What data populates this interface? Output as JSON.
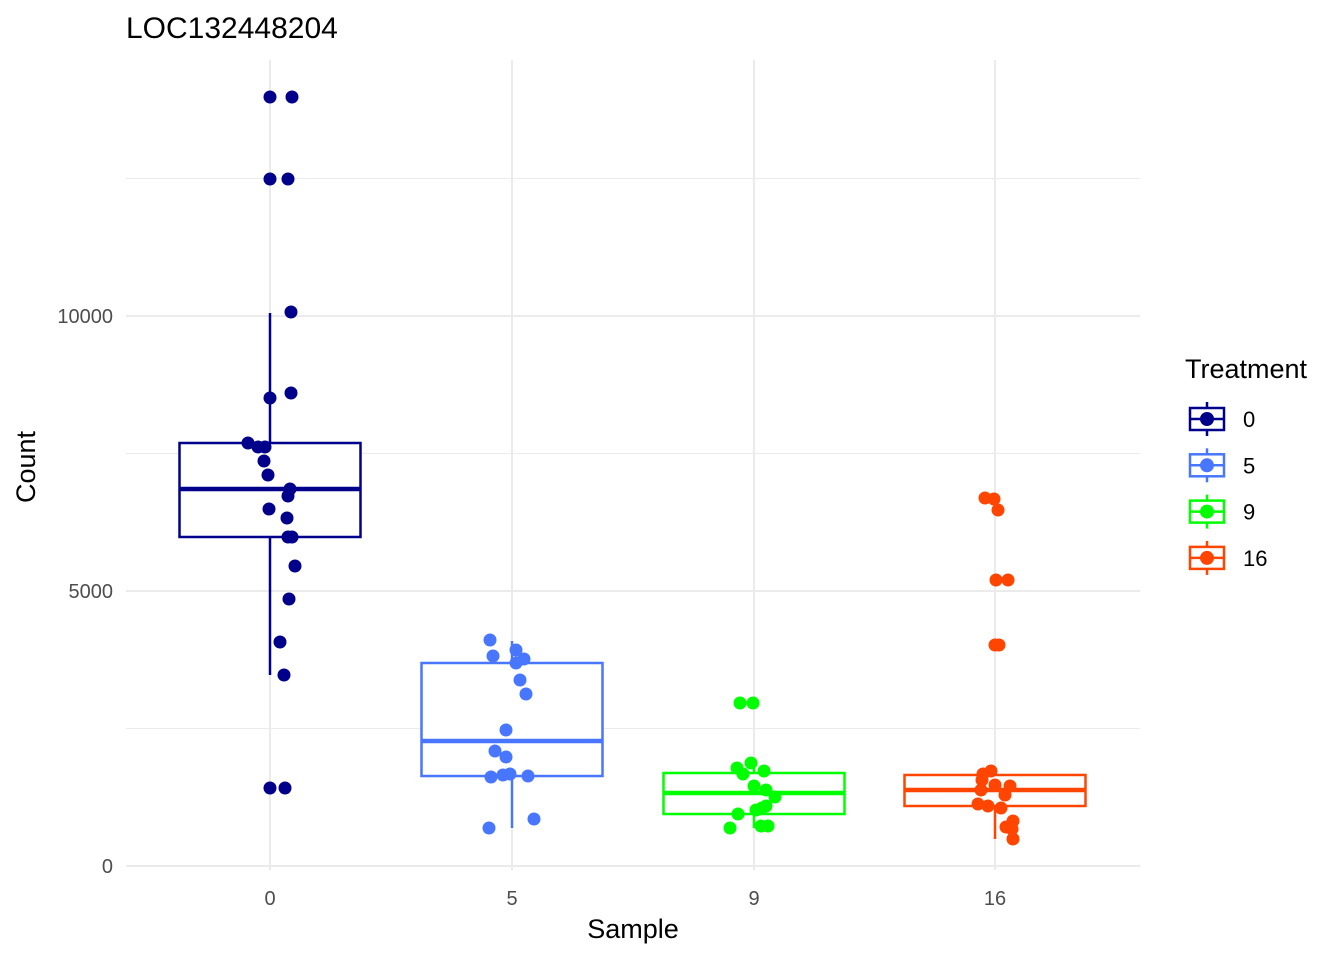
{
  "chart_data": {
    "type": "boxplot",
    "title": "LOC132448204",
    "xlabel": "Sample",
    "ylabel": "Count",
    "ylim": [
      0,
      14500
    ],
    "yticks": [
      0,
      5000,
      10000
    ],
    "ytick_labels": [
      "0",
      "5000",
      "10000"
    ],
    "grid": true,
    "legend": {
      "title": "Treatment",
      "placement": "right"
    },
    "categories": [
      "0",
      "5",
      "9",
      "16"
    ],
    "series": [
      {
        "name": "0",
        "color": "#00008B",
        "box": {
          "lower_whisker": 3473,
          "q1": 5982,
          "median": 6855,
          "q3": 7691,
          "upper_whisker": 10055
        },
        "points": [
          13982,
          13982,
          12491,
          12491,
          10073,
          8509,
          8600,
          7691,
          7618,
          7618,
          7364,
          7109,
          6855,
          6727,
          6491,
          6327,
          5982,
          5982,
          5455,
          4855,
          4073,
          3473,
          1418,
          1418
        ]
      },
      {
        "name": "5",
        "color": "#4876FF",
        "box": {
          "lower_whisker": 691,
          "q1": 1636,
          "median": 2273,
          "q3": 3691,
          "upper_whisker": 4091
        },
        "points": [
          4109,
          3927,
          3818,
          3764,
          3691,
          3382,
          3127,
          2473,
          2091,
          1982,
          1618,
          1655,
          1673,
          1636,
          855,
          691
        ]
      },
      {
        "name": "9",
        "color": "#00FF00",
        "box": {
          "lower_whisker": 691,
          "q1": 945,
          "median": 1327,
          "q3": 1691,
          "upper_whisker": 1873
        },
        "points": [
          2964,
          2964,
          1873,
          1782,
          1727,
          1673,
          1455,
          1382,
          1255,
          1018,
          1055,
          1091,
          945,
          727,
          727,
          691
        ]
      },
      {
        "name": "16",
        "color": "#FF4500",
        "box": {
          "lower_whisker": 491,
          "q1": 1091,
          "median": 1382,
          "q3": 1655,
          "upper_whisker": 1727
        },
        "points": [
          6691,
          6673,
          6473,
          5200,
          5200,
          4018,
          4018,
          1727,
          1673,
          1564,
          1473,
          1382,
          1455,
          1291,
          1127,
          1091,
          1055,
          818,
          709,
          673,
          491
        ]
      }
    ]
  }
}
